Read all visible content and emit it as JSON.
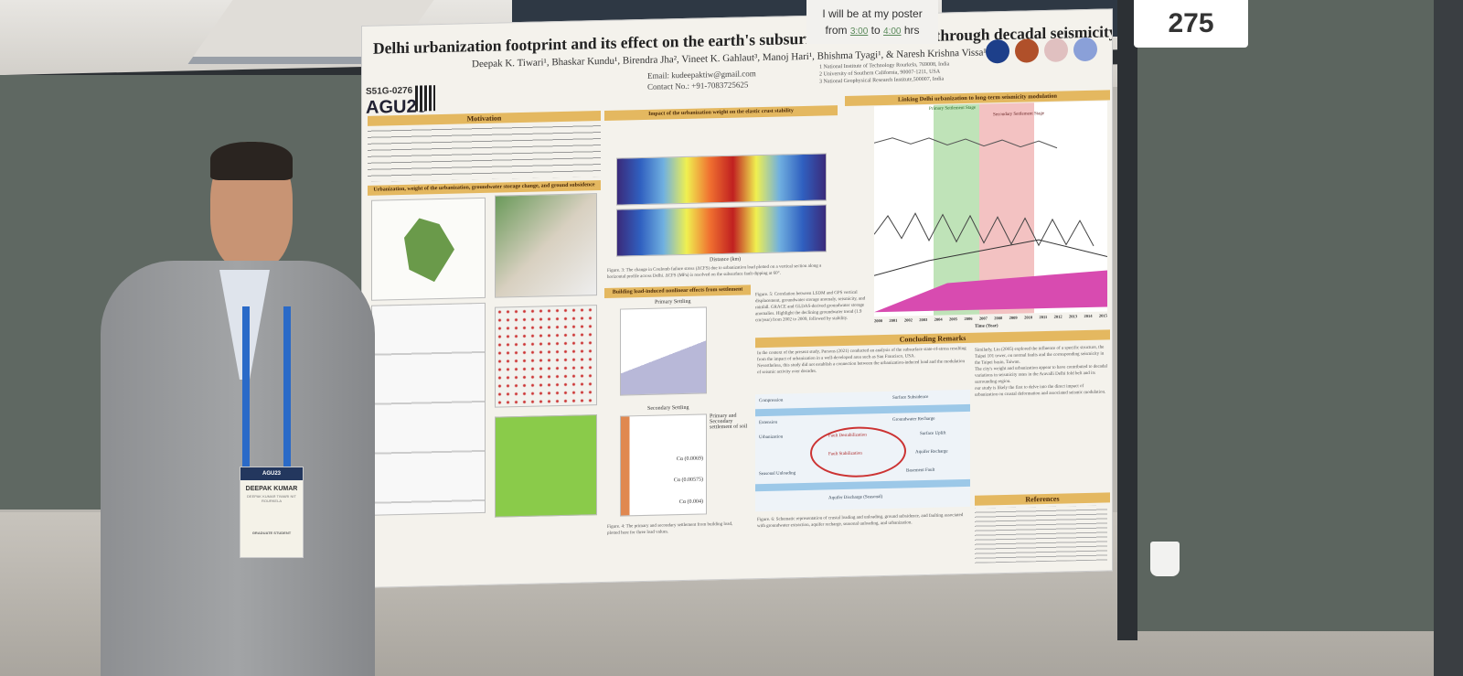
{
  "booth_number": "275",
  "presence_note": {
    "line1": "I will be at my poster",
    "from_label": "from",
    "from_time": "3:00",
    "to_label": "to",
    "to_time": "4:00",
    "unit": "hrs"
  },
  "poster": {
    "title": "Delhi urbanization footprint and its effect on the earth's subsurface state-of-stress through decadal seismicity modulation",
    "authors": "Deepak K. Tiwari¹, Bhaskar Kundu¹, Birendra Jha², Vineet K. Gahlaut³, Manoj Hari¹, Bhishma Tyagi¹, & Naresh Krishna Vissa¹",
    "email": "Email: kudeepaktiw@gmail.com",
    "contact": "Contact No.: +91-7083725625",
    "affiliations": [
      "1  National Institute of Technology Rourkela, 769008, India",
      "2  University of Southern California, 90007-1211, USA",
      "3  National Geophysical Research Institute,500007, India"
    ],
    "session_code": "S51G-0276",
    "conference": "AGU23",
    "sections": {
      "motivation": "Motivation",
      "urbanization": "Urbanization, weight of the urbanization, groundwater storage change, and ground subsidence",
      "impact": "Impact of the urbanization weight on the elastic crust stability",
      "linking": "Linking Delhi urbanization to long-term seismicity modulation",
      "building": "Building load-induced nonlinear effects from settlement",
      "conclusions": "Concluding Remarks",
      "references": "References"
    },
    "chart_labels": {
      "primary_stage": "Primary Settlement Stage",
      "secondary_stage": "Secondary Settlement Stage",
      "time_axis": "Time (Year)",
      "years": [
        "2000",
        "2001",
        "2002",
        "2003",
        "2004",
        "2005",
        "2006",
        "2007",
        "2008",
        "2009",
        "2010",
        "2011",
        "2012",
        "2013",
        "2014",
        "2015"
      ],
      "primary_settling": "Primary Settling",
      "secondary_settling": "Secondary Settling",
      "distance": "Distance (km)"
    },
    "figure_captions": {
      "fig3": "Figure. 3: The change in Coulomb failure stress (ΔCFS) due to urbanization load plotted on a vertical section along a horizontal profile across Delhi. ΔCFS (MPa) is resolved on the subsurface fault dipping at 60°.",
      "fig5": "Figure. 5: Correlation between LSDM and GPS vertical displacement, groundwater storage anomaly, seismicity, and rainfall. GRACE and GLDAS-derived groundwater storage anomalies. Highlight the declining groundwater trend (1.9 cm/year) from 2002 to 2009, followed by stability.",
      "fig6": "Figure. 6: Schematic representation of crustal loading and unloading, ground subsidence, and faulting associated with groundwater extraction, aquifer recharge, seasonal unloading, and urbanization.",
      "fig4": "Figure. 4: The primary and secondary settlement from building load, plotted here for three load values."
    },
    "conclusions": [
      "In the context of the present study, Parsons (2021) conducted an analysis of the subsurface state-of-stress resulting from the impact of urbanization in a well-developed area such as San Francisco, USA.",
      "Nevertheless, this study did not establish a connection between the urbanization-induced load and the modulation of seismic activity over decades.",
      "Similarly, Lin (2005) explored the influence of a specific structure, the Taipei 101 tower, on normal faults and the corresponding seismicity in the Taipei basin, Taiwan.",
      "The city's weight and urbanization appear to have contributed to decadal variations in seismicity rates in the Aravalli Delhi fold belt and its surrounding region.",
      "our study is likely the first to delve into the direct impact of urbanization on crustal deformation and associated seismic modulation."
    ],
    "schematic_labels": [
      "Compression",
      "Extension",
      "Fault Destabilization",
      "Fault Stabilization",
      "Urbanization",
      "Surface Subsidence",
      "Basement Fault",
      "Groundwater Recharge",
      "Aquifer Recharge",
      "Seasonal Unloading",
      "Aquifer Discharge (Seasonal)",
      "Surface Uplift"
    ],
    "settlement_labels": {
      "heading": "Primary and Secondary settlement of soil",
      "c1": "Cα (0.0069)",
      "c2": "Cα (0.00575)",
      "c3": "Cα (0.004)"
    }
  },
  "badge": {
    "event": "AGU23",
    "name": "DEEPAK KUMAR",
    "subtitle": "DEEPAK KUMAR TIWARI NIT ROURKELA",
    "role": "GRADUATE STUDENT"
  },
  "colors": {
    "poster_bg": "#f4f2ec",
    "header_band": "#e4b860",
    "board": "#5f6862",
    "primary_stage": "#bfe3b8",
    "secondary_stage": "#f3c2c2",
    "rainfall": "#d84bb0"
  }
}
